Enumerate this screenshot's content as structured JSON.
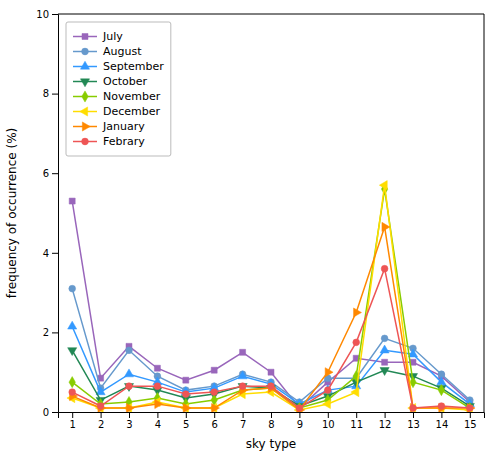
{
  "chart_data": {
    "type": "line",
    "x": [
      1,
      2,
      3,
      4,
      5,
      6,
      7,
      8,
      9,
      10,
      11,
      12,
      13,
      14,
      15
    ],
    "series": [
      {
        "name": "July",
        "color": "#9966BB",
        "marker": "square",
        "values": [
          5.3,
          0.85,
          1.65,
          1.1,
          0.8,
          1.05,
          1.5,
          1.0,
          0.1,
          0.75,
          1.35,
          1.25,
          1.25,
          0.9,
          0.25
        ]
      },
      {
        "name": "August",
        "color": "#6699CC",
        "marker": "circle",
        "values": [
          3.1,
          0.6,
          1.55,
          0.9,
          0.55,
          0.65,
          0.95,
          0.75,
          0.25,
          0.85,
          0.85,
          1.85,
          1.6,
          0.95,
          0.3
        ]
      },
      {
        "name": "September",
        "color": "#3399FF",
        "marker": "triangle-up",
        "values": [
          2.15,
          0.5,
          0.95,
          0.75,
          0.5,
          0.6,
          0.9,
          0.7,
          0.2,
          0.55,
          0.65,
          1.55,
          1.45,
          0.75,
          0.2
        ]
      },
      {
        "name": "October",
        "color": "#228855",
        "marker": "triangle-down",
        "values": [
          1.55,
          0.3,
          0.65,
          0.55,
          0.35,
          0.45,
          0.65,
          0.6,
          0.15,
          0.4,
          0.75,
          1.05,
          0.9,
          0.6,
          0.15
        ]
      },
      {
        "name": "November",
        "color": "#88CC00",
        "marker": "diamond",
        "values": [
          0.75,
          0.2,
          0.25,
          0.35,
          0.2,
          0.3,
          0.55,
          0.6,
          0.1,
          0.3,
          0.9,
          5.6,
          0.75,
          0.55,
          0.1
        ]
      },
      {
        "name": "December",
        "color": "#FFDD00",
        "marker": "triangle-left",
        "values": [
          0.35,
          0.1,
          0.1,
          0.25,
          0.1,
          0.1,
          0.45,
          0.5,
          0.05,
          0.2,
          0.5,
          5.7,
          0.1,
          0.1,
          0.05
        ]
      },
      {
        "name": "January",
        "color": "#FF8800",
        "marker": "triangle-right",
        "values": [
          0.4,
          0.1,
          0.1,
          0.2,
          0.1,
          0.1,
          0.55,
          0.6,
          0.05,
          1.0,
          2.5,
          4.65,
          0.1,
          0.1,
          0.1
        ]
      },
      {
        "name": "Febrary",
        "color": "#EE5555",
        "marker": "circle",
        "values": [
          0.5,
          0.15,
          0.65,
          0.65,
          0.45,
          0.5,
          0.65,
          0.65,
          0.1,
          0.55,
          1.75,
          3.6,
          0.1,
          0.15,
          0.1
        ]
      }
    ],
    "xlim": [
      0.5,
      15.5
    ],
    "ylim": [
      0,
      10
    ],
    "xticks": [
      1,
      2,
      3,
      4,
      5,
      6,
      7,
      8,
      9,
      10,
      11,
      12,
      13,
      14,
      15
    ],
    "yticks": [
      0,
      2,
      4,
      6,
      8,
      10
    ],
    "xlabel": "sky type",
    "ylabel": "frequency of occurrence (%)",
    "legend": "upper left",
    "grid": false
  }
}
